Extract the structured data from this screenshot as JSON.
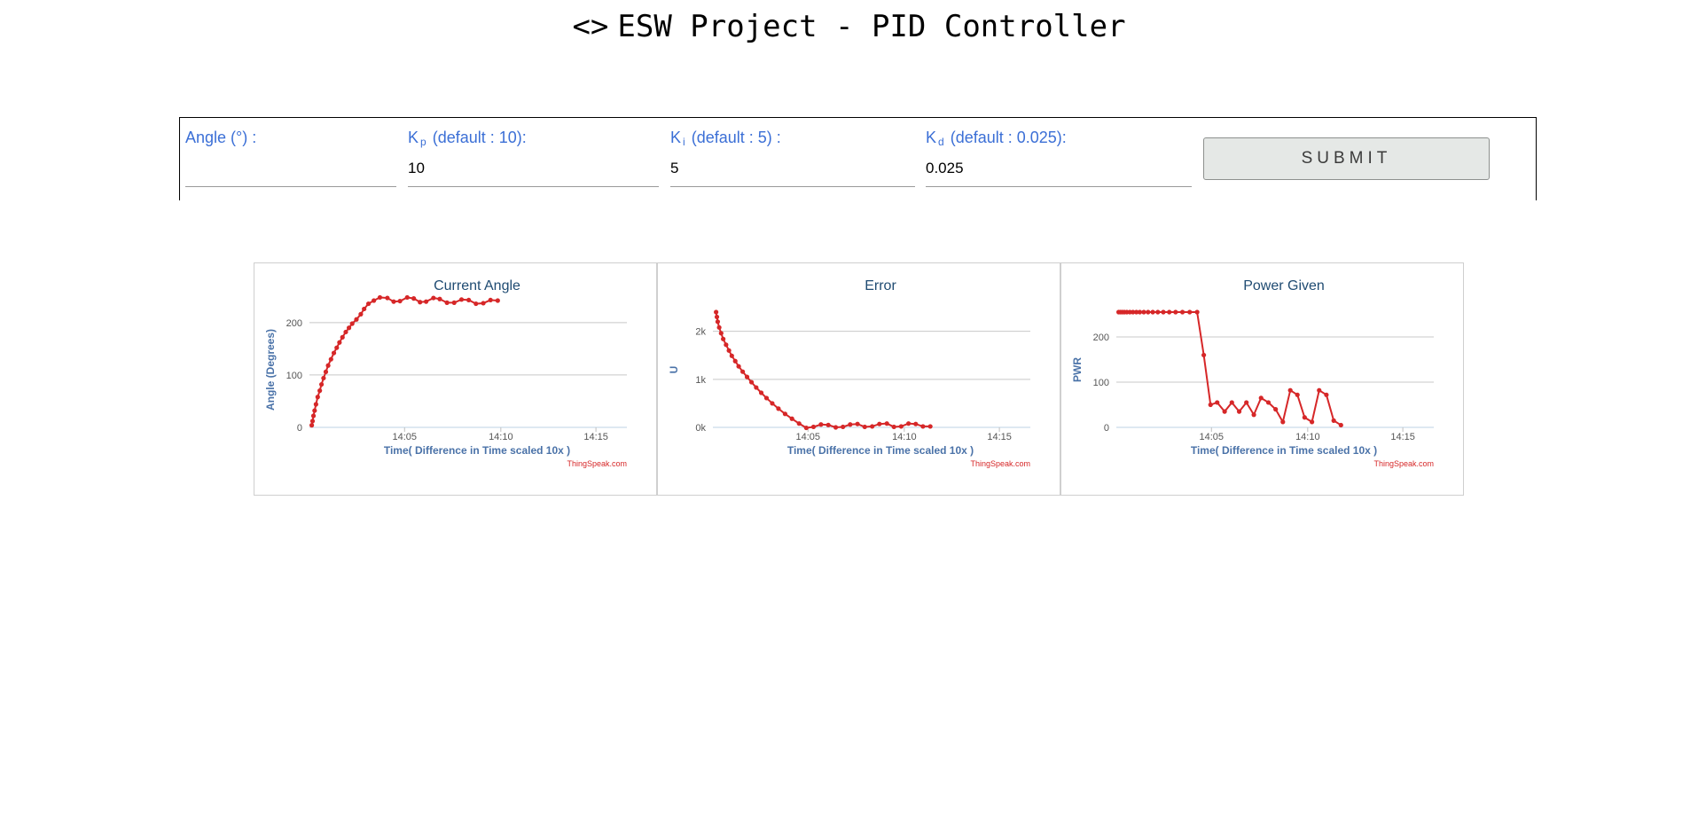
{
  "page": {
    "title_icon": "<>",
    "title": "ESW Project - PID Controller"
  },
  "form": {
    "angle": {
      "label": "Angle (°) :",
      "value": ""
    },
    "kp": {
      "label_main": "K",
      "label_sub": "p",
      "label_rest": "(default : 10):",
      "value": "10"
    },
    "ki": {
      "label_main": "K",
      "label_sub": "i",
      "label_rest": "(default : 5) :",
      "value": "5"
    },
    "kd": {
      "label_main": "K",
      "label_sub": "d",
      "label_rest": "(default : 0.025):",
      "value": "0.025"
    },
    "submit_label": "SUBMIT"
  },
  "colors": {
    "series": "#d62728",
    "label_blue": "#3b6fd6",
    "title_blue": "#1f4b72",
    "axis_label_blue": "#4a72a8"
  },
  "chart_data": [
    {
      "type": "line",
      "title": "Current Angle",
      "xlabel": "Time( Difference in Time scaled 10x )",
      "ylabel": "Angle (Degrees)",
      "credit": "ThingSpeak.com",
      "grid": true,
      "xlim": [
        14.0,
        14.277
      ],
      "ylim": [
        0,
        220
      ],
      "x_ticks": [
        {
          "v": 14.083,
          "label": "14:05"
        },
        {
          "v": 14.167,
          "label": "14:10"
        },
        {
          "v": 14.25,
          "label": "14:15"
        }
      ],
      "y_ticks": [
        {
          "v": 0,
          "label": "0"
        },
        {
          "v": 100,
          "label": "100"
        },
        {
          "v": 200,
          "label": "200"
        }
      ],
      "series": [
        {
          "points": [
            [
              14.002,
              4
            ],
            [
              14.0027,
              12
            ],
            [
              14.0035,
              22
            ],
            [
              14.0045,
              32
            ],
            [
              14.0057,
              44
            ],
            [
              14.0072,
              58
            ],
            [
              14.009,
              70
            ],
            [
              14.0105,
              82
            ],
            [
              14.0123,
              94
            ],
            [
              14.0143,
              106
            ],
            [
              14.0163,
              118
            ],
            [
              14.0188,
              130
            ],
            [
              14.0213,
              142
            ],
            [
              14.0238,
              152
            ],
            [
              14.0262,
              162
            ],
            [
              14.0288,
              172
            ],
            [
              14.0317,
              182
            ],
            [
              14.0345,
              190
            ],
            [
              14.0373,
              198
            ],
            [
              14.041,
              206
            ],
            [
              14.0448,
              216
            ],
            [
              14.0477,
              226
            ],
            [
              14.0515,
              236
            ],
            [
              14.0562,
              242
            ],
            [
              14.0615,
              248
            ],
            [
              14.068,
              247
            ],
            [
              14.0735,
              240
            ],
            [
              14.079,
              241
            ],
            [
              14.0853,
              248
            ],
            [
              14.091,
              246
            ],
            [
              14.0965,
              239
            ],
            [
              14.1018,
              240
            ],
            [
              14.1082,
              247
            ],
            [
              14.1137,
              245
            ],
            [
              14.12,
              238
            ],
            [
              14.1263,
              238
            ],
            [
              14.1327,
              244
            ],
            [
              14.139,
              243
            ],
            [
              14.1453,
              236
            ],
            [
              14.1517,
              237
            ],
            [
              14.158,
              243
            ],
            [
              14.1643,
              242
            ]
          ]
        }
      ]
    },
    {
      "type": "line",
      "title": "Error",
      "xlabel": "Time( Difference in Time scaled 10x )",
      "ylabel": "U",
      "credit": "ThingSpeak.com",
      "grid": true,
      "xlim": [
        14.0,
        14.277
      ],
      "ylim": [
        0,
        2400
      ],
      "x_ticks": [
        {
          "v": 14.083,
          "label": "14:05"
        },
        {
          "v": 14.167,
          "label": "14:10"
        },
        {
          "v": 14.25,
          "label": "14:15"
        }
      ],
      "y_ticks": [
        {
          "v": 0,
          "label": "0k"
        },
        {
          "v": 1000,
          "label": "1k"
        },
        {
          "v": 2000,
          "label": "2k"
        }
      ],
      "series": [
        {
          "points": [
            [
              14.0028,
              2400
            ],
            [
              14.0035,
              2300
            ],
            [
              14.0042,
              2200
            ],
            [
              14.0055,
              2080
            ],
            [
              14.0072,
              1960
            ],
            [
              14.009,
              1840
            ],
            [
              14.0115,
              1720
            ],
            [
              14.014,
              1600
            ],
            [
              14.0165,
              1490
            ],
            [
              14.0195,
              1380
            ],
            [
              14.0225,
              1270
            ],
            [
              14.026,
              1160
            ],
            [
              14.0298,
              1050
            ],
            [
              14.0337,
              940
            ],
            [
              14.0378,
              830
            ],
            [
              14.0422,
              720
            ],
            [
              14.0468,
              610
            ],
            [
              14.0518,
              500
            ],
            [
              14.0572,
              390
            ],
            [
              14.063,
              280
            ],
            [
              14.069,
              180
            ],
            [
              14.0752,
              80
            ],
            [
              14.0815,
              -10
            ],
            [
              14.0878,
              10
            ],
            [
              14.0943,
              60
            ],
            [
              14.1007,
              50
            ],
            [
              14.1072,
              0
            ],
            [
              14.1135,
              10
            ],
            [
              14.1198,
              60
            ],
            [
              14.1262,
              70
            ],
            [
              14.1325,
              10
            ],
            [
              14.139,
              20
            ],
            [
              14.1453,
              70
            ],
            [
              14.1518,
              80
            ],
            [
              14.158,
              10
            ],
            [
              14.1643,
              20
            ],
            [
              14.1707,
              80
            ],
            [
              14.177,
              70
            ],
            [
              14.1833,
              20
            ],
            [
              14.1897,
              20
            ]
          ]
        }
      ]
    },
    {
      "type": "line",
      "title": "Power Given",
      "xlabel": "Time( Difference in Time scaled 10x )",
      "ylabel": "PWR",
      "credit": "ThingSpeak.com",
      "grid": true,
      "xlim": [
        14.0,
        14.277
      ],
      "ylim": [
        0,
        255
      ],
      "x_ticks": [
        {
          "v": 14.083,
          "label": "14:05"
        },
        {
          "v": 14.167,
          "label": "14:10"
        },
        {
          "v": 14.25,
          "label": "14:15"
        }
      ],
      "y_ticks": [
        {
          "v": 0,
          "label": "0"
        },
        {
          "v": 100,
          "label": "100"
        },
        {
          "v": 200,
          "label": "200"
        }
      ],
      "series": [
        {
          "points": [
            [
              14.002,
              255
            ],
            [
              14.0035,
              255
            ],
            [
              14.0052,
              255
            ],
            [
              14.007,
              255
            ],
            [
              14.0092,
              255
            ],
            [
              14.0118,
              255
            ],
            [
              14.0145,
              255
            ],
            [
              14.0175,
              255
            ],
            [
              14.0205,
              255
            ],
            [
              14.024,
              255
            ],
            [
              14.0277,
              255
            ],
            [
              14.0318,
              255
            ],
            [
              14.0362,
              255
            ],
            [
              14.041,
              255
            ],
            [
              14.0462,
              255
            ],
            [
              14.0517,
              255
            ],
            [
              14.0577,
              255
            ],
            [
              14.064,
              255
            ],
            [
              14.0705,
              255
            ],
            [
              14.0763,
              160
            ],
            [
              14.0822,
              50
            ],
            [
              14.088,
              55
            ],
            [
              14.0945,
              35
            ],
            [
              14.1008,
              55
            ],
            [
              14.1072,
              35
            ],
            [
              14.1135,
              55
            ],
            [
              14.12,
              28
            ],
            [
              14.1263,
              65
            ],
            [
              14.1327,
              55
            ],
            [
              14.139,
              40
            ],
            [
              14.1453,
              12
            ],
            [
              14.1518,
              82
            ],
            [
              14.158,
              72
            ],
            [
              14.1643,
              22
            ],
            [
              14.1707,
              12
            ],
            [
              14.177,
              82
            ],
            [
              14.1833,
              72
            ],
            [
              14.1897,
              15
            ],
            [
              14.196,
              5
            ]
          ]
        }
      ]
    }
  ]
}
